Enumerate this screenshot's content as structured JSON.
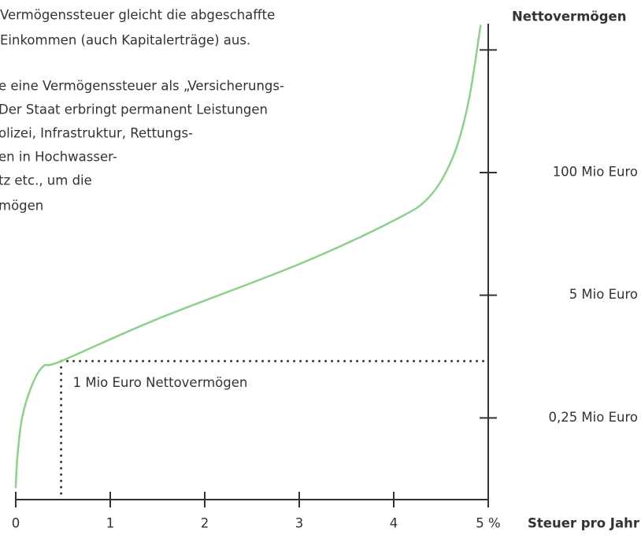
{
  "chart_data": {
    "type": "line",
    "text_lines": [
      "Vermögenssteuer gleicht die abgeschaffte",
      "Einkommen (auch Kapitalerträge) aus.",
      "e eine Vermögenssteuer als „Versicherungs-",
      "Der Staat erbringt permanent Leistungen",
      "olizei, Infrastruktur, Rettungs-",
      "en in Hochwasser-",
      "tz etc., um die",
      "mögen"
    ],
    "xlabel": "Steuer pro Jahr",
    "ylabel": "Nettovermögen",
    "annotation": "1 Mio Euro Nettovermögen",
    "x": [
      0,
      0.017,
      0.067,
      0.167,
      0.29,
      0.48,
      1.5,
      3,
      4,
      4.375,
      4.625,
      4.79,
      4.92
    ],
    "values": [
      0.045,
      0.096,
      0.25,
      0.54,
      0.88,
      1,
      2.8,
      10.7,
      31,
      55,
      145,
      555,
      3700
    ],
    "color": "#8dcf8d",
    "xlim": [
      0,
      5
    ],
    "xticks": [
      0,
      1,
      2,
      3,
      4,
      {
        "value": 5,
        "label": "5 %"
      }
    ],
    "ylim": [
      0.034,
      3800
    ],
    "yscale": "log",
    "yticks": [
      {
        "value": 0.25,
        "label": "0,25 Mio Euro"
      },
      {
        "value": 5,
        "label": "5 Mio Euro"
      },
      {
        "value": 100,
        "label": "100 Mio Euro"
      },
      {
        "value": 2000,
        "label": null
      }
    ]
  }
}
